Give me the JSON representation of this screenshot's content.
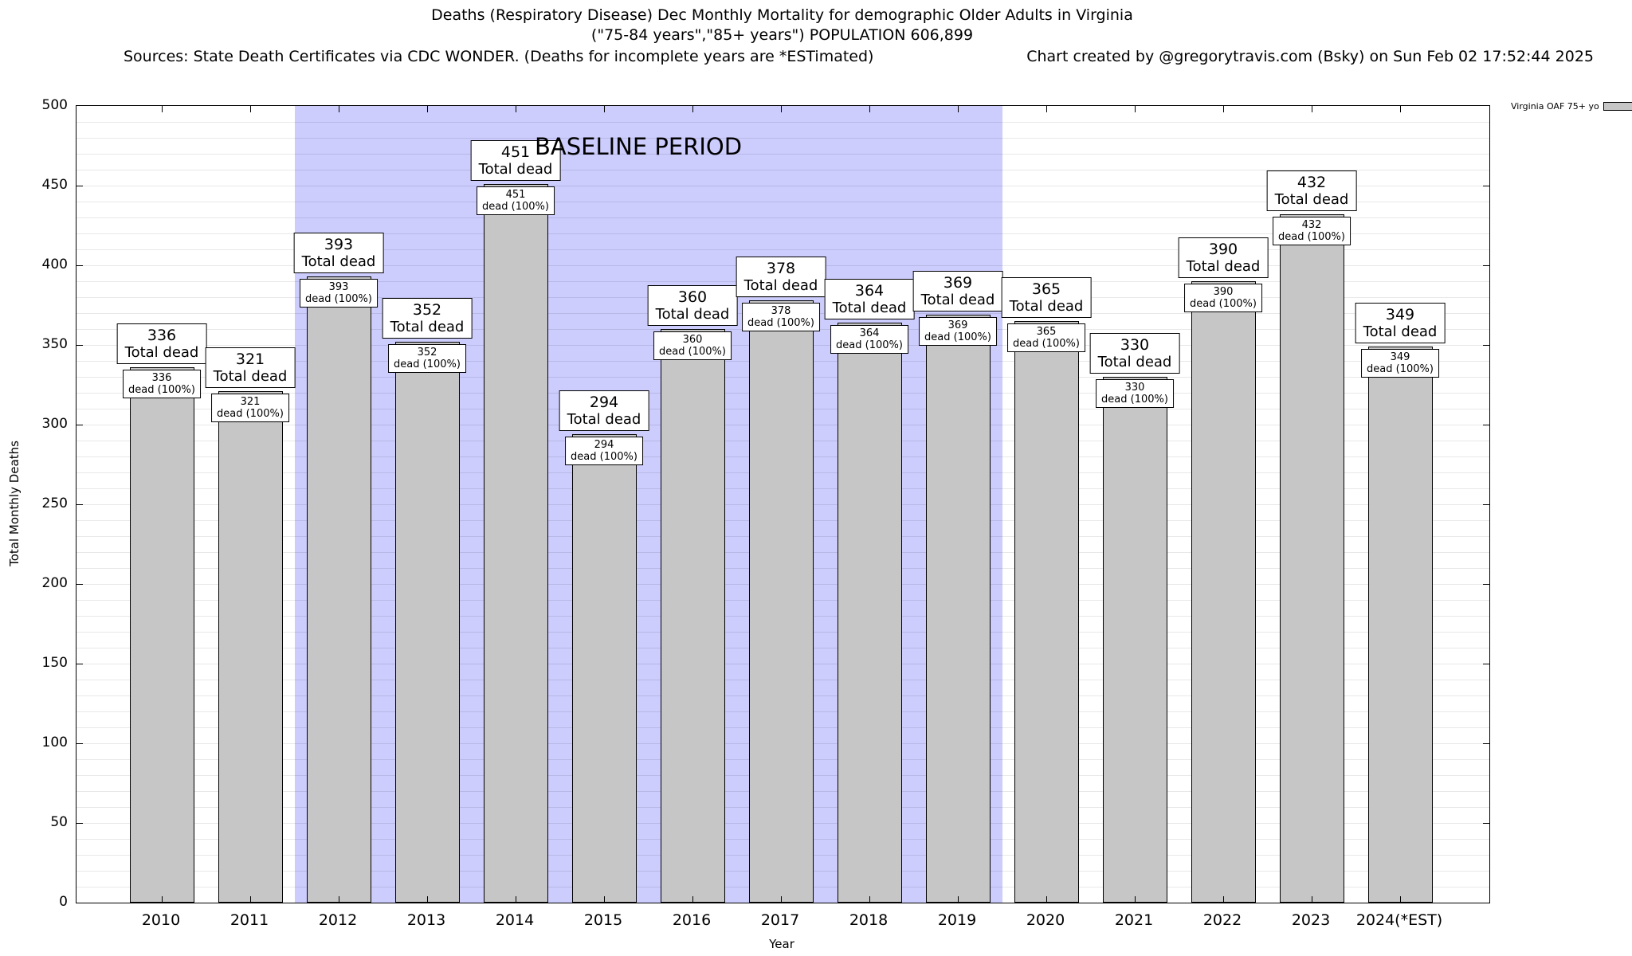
{
  "header": {
    "title_line1": "Deaths (Respiratory Disease) Dec Monthly Mortality for demographic Older Adults in Virginia",
    "title_line2": "(\"75-84 years\",\"85+ years\") POPULATION 606,899",
    "sources": "Sources: State Death Certificates via CDC WONDER. (Deaths for incomplete years are *ESTimated)",
    "credit": "Chart created by @gregorytravis.com (Bsky) on Sun Feb 02 17:52:44 2025"
  },
  "chart_data": {
    "type": "bar",
    "title": "Deaths (Respiratory Disease) Dec Monthly Mortality for demographic Older Adults in Virginia",
    "subtitle": "(\"75-84 years\",\"85+ years\") POPULATION 606,899",
    "xlabel": "Year",
    "ylabel": "Total Monthly Deaths",
    "ylim": [
      0,
      500
    ],
    "ytick_step": 50,
    "minor_grid_step": 10,
    "grid": true,
    "categories": [
      "2010",
      "2011",
      "2012",
      "2013",
      "2014",
      "2015",
      "2016",
      "2017",
      "2018",
      "2019",
      "2020",
      "2021",
      "2022",
      "2023",
      "2024(*EST)"
    ],
    "values": [
      336,
      321,
      393,
      352,
      451,
      294,
      360,
      378,
      364,
      369,
      365,
      330,
      390,
      432,
      349
    ],
    "bar_label_line2": "Total dead",
    "bar_inner_label_line2": "dead (100%)",
    "baseline": {
      "label": "BASELINE PERIOD",
      "start_category": "2012",
      "end_category": "2019",
      "start_index": 2,
      "end_index": 9
    },
    "legend": [
      {
        "label": "Virginia OAF 75+ yo",
        "color": "#c6c6c6",
        "position": "top-right"
      }
    ],
    "colors": {
      "bar_fill": "#c6c6c6",
      "bar_border": "#000000",
      "baseline_region": "#ccccfd",
      "label_box_bg": "#ffffff"
    }
  }
}
